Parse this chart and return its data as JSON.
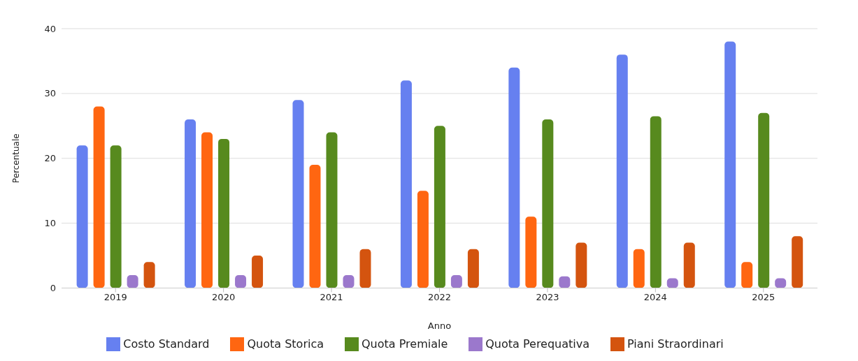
{
  "chart_data": {
    "type": "bar",
    "xlabel": "Anno",
    "ylabel": "Percentuale",
    "categories": [
      "2019",
      "2020",
      "2021",
      "2022",
      "2023",
      "2024",
      "2025"
    ],
    "series": [
      {
        "name": "Costo Standard",
        "color": "#6680f0",
        "values": [
          22,
          26,
          29,
          32,
          34,
          36,
          38
        ]
      },
      {
        "name": "Quota Storica",
        "color": "#ff6611",
        "values": [
          28,
          24,
          19,
          15,
          11,
          6,
          4
        ]
      },
      {
        "name": "Quota Premiale",
        "color": "#578a1e",
        "values": [
          22,
          23,
          24,
          25,
          26,
          26.5,
          27
        ]
      },
      {
        "name": "Quota Perequativa",
        "color": "#9b78cc",
        "values": [
          2,
          2,
          2,
          2,
          1.8,
          1.5,
          1.5
        ]
      },
      {
        "name": "Piani Straordinari",
        "color": "#d4540f",
        "values": [
          4,
          5,
          6,
          6,
          7,
          7,
          8
        ]
      }
    ],
    "ylim": [
      0,
      40
    ],
    "yticks": [
      0,
      10,
      20,
      30,
      40
    ],
    "grid": "y",
    "legend": "bottom"
  }
}
